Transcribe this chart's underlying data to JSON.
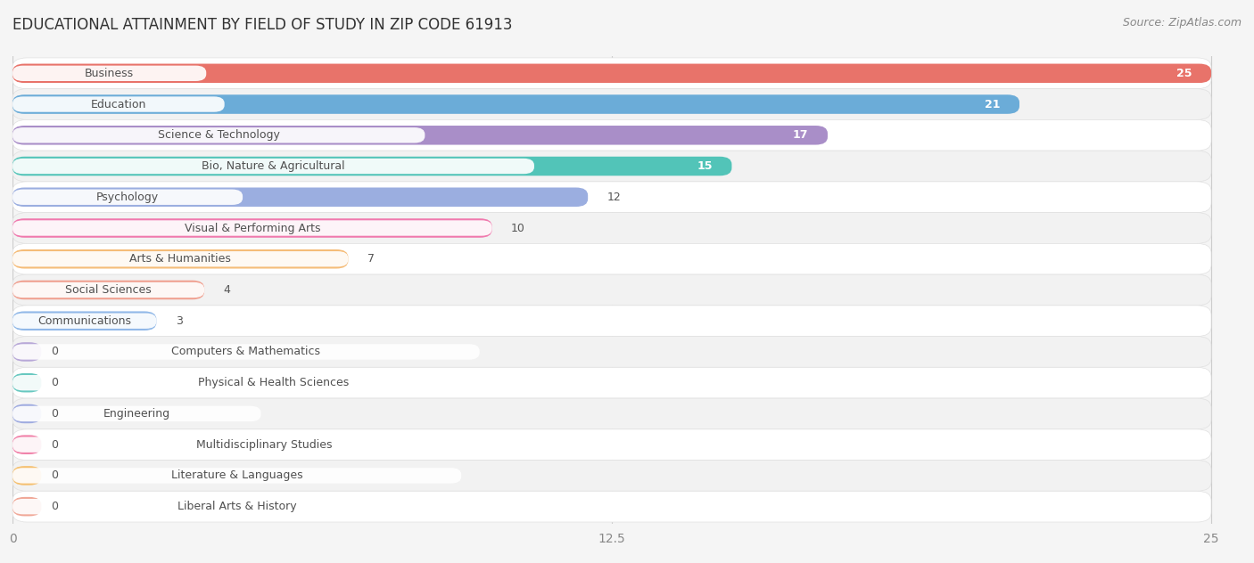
{
  "title": "EDUCATIONAL ATTAINMENT BY FIELD OF STUDY IN ZIP CODE 61913",
  "source": "Source: ZipAtlas.com",
  "categories": [
    "Business",
    "Education",
    "Science & Technology",
    "Bio, Nature & Agricultural",
    "Psychology",
    "Visual & Performing Arts",
    "Arts & Humanities",
    "Social Sciences",
    "Communications",
    "Computers & Mathematics",
    "Physical & Health Sciences",
    "Engineering",
    "Multidisciplinary Studies",
    "Literature & Languages",
    "Liberal Arts & History"
  ],
  "values": [
    25,
    21,
    17,
    15,
    12,
    10,
    7,
    4,
    3,
    0,
    0,
    0,
    0,
    0,
    0
  ],
  "bar_colors": [
    "#E8736A",
    "#6BACD8",
    "#A98EC8",
    "#52C4B8",
    "#9BAEE0",
    "#F07AAE",
    "#F5BC78",
    "#F0A090",
    "#90B8E8",
    "#B8A8D8",
    "#68C8C0",
    "#A0ACE0",
    "#F080A8",
    "#F5C070",
    "#F0A898"
  ],
  "xlim": [
    0,
    25
  ],
  "xticks": [
    0,
    12.5,
    25
  ],
  "row_colors": [
    "#FFFFFF",
    "#F2F2F2"
  ],
  "background_color": "#F5F5F5",
  "title_fontsize": 12,
  "source_fontsize": 9,
  "tick_fontsize": 10,
  "label_fontsize": 9,
  "value_fontsize": 9
}
